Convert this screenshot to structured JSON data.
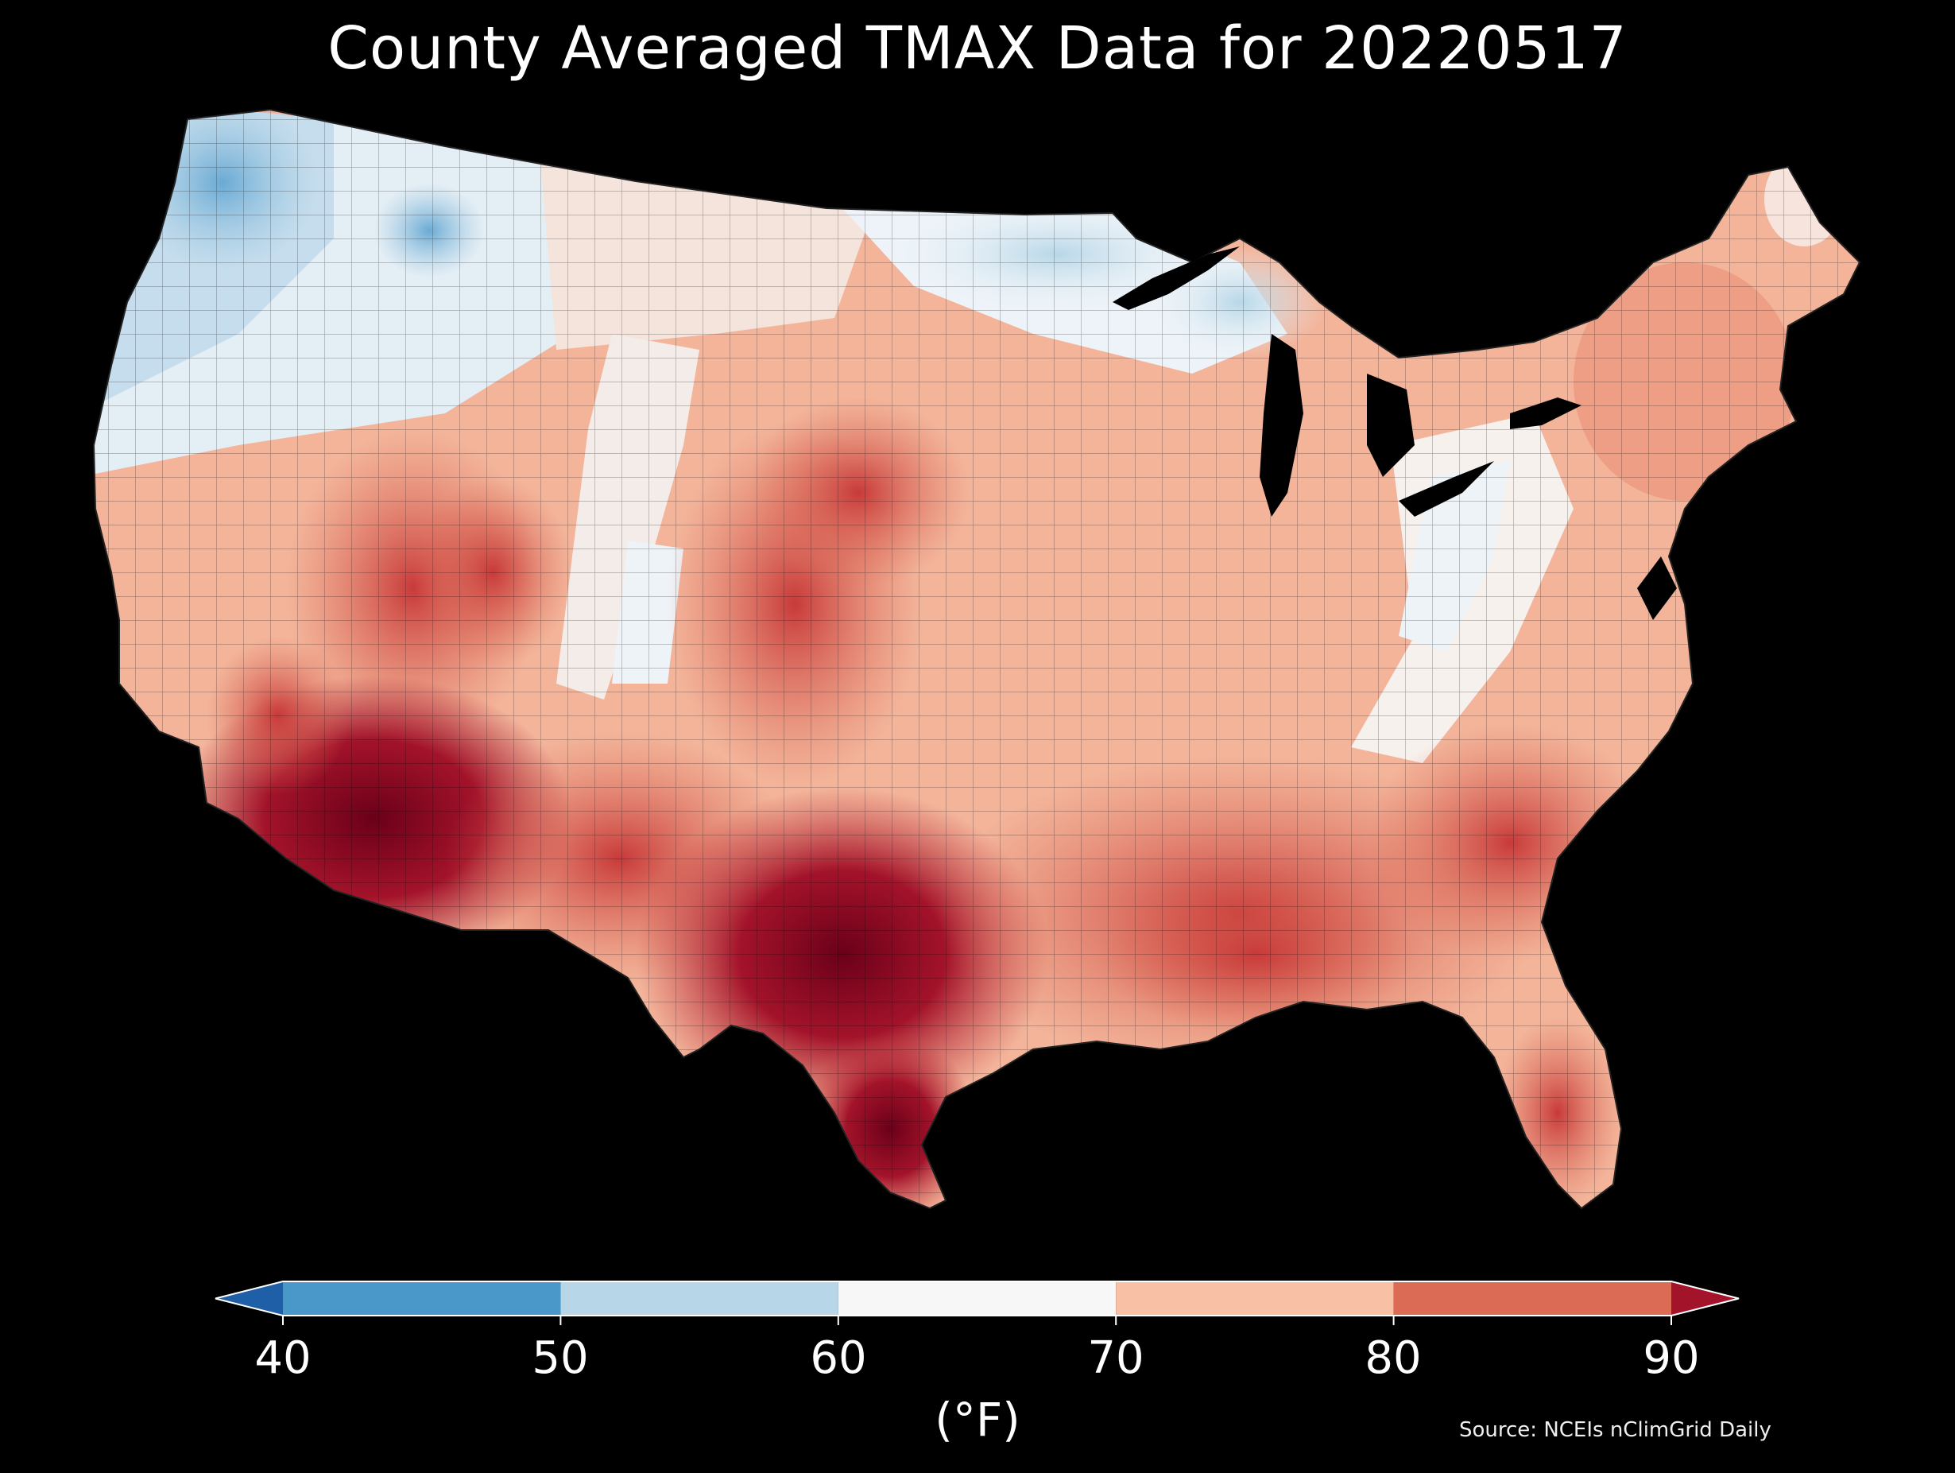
{
  "title": "County Averaged TMAX Data for 20220517",
  "colorbar": {
    "ticks": [
      "40",
      "50",
      "60",
      "70",
      "80",
      "90"
    ],
    "unit": "(°F)",
    "bins": [
      {
        "from": 40,
        "to": 50,
        "color": "#4a98c9"
      },
      {
        "from": 50,
        "to": 60,
        "color": "#b7d7e8"
      },
      {
        "from": 60,
        "to": 70,
        "color": "#f7f7f7"
      },
      {
        "from": 70,
        "to": 80,
        "color": "#f8c1a6"
      },
      {
        "from": 80,
        "to": 90,
        "color": "#dc6b56"
      }
    ],
    "under_color": "#1f5fa8",
    "over_color": "#a3132a"
  },
  "source": "Source: NCEIs nClimGrid Daily",
  "legend_colors": {
    "below_40": "#1f5fa8",
    "40_50": "#4a98c9",
    "50_60": "#b7d7e8",
    "60_70": "#f7f7f7",
    "70_80": "#f8c1a6",
    "80_90": "#dc6b56",
    "above_90": "#a3132a",
    "hottest": "#6b0019"
  }
}
